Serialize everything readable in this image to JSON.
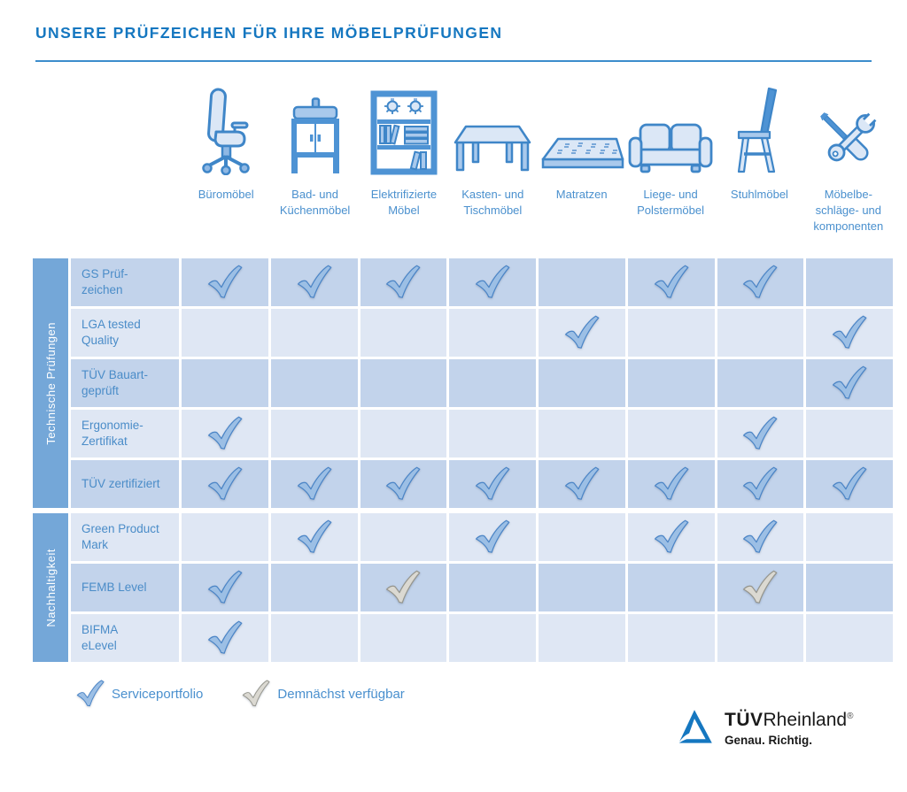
{
  "title": "UNSERE PRÜFZEICHEN FÜR IHRE MÖBELPRÜFUNGEN",
  "colors": {
    "accent_blue": "#1577c0",
    "underline_blue": "#3c8dcc",
    "group_band": "#74a7d8",
    "row_medium": "#c2d3eb",
    "row_light": "#dfe7f4",
    "label_text": "#4a8cc8",
    "column_label_text": "#4a90ce",
    "check_blue_fill": "#9cbfe5",
    "check_blue_stroke": "#4a84c6",
    "check_gray_fill": "#dbd9d2",
    "check_gray_stroke": "#95958d",
    "logo_blue": "#1577c0"
  },
  "columns": [
    {
      "label": "Büromöbel",
      "icon": "office-chair-icon"
    },
    {
      "label": "Bad- und\nKüchenmöbel",
      "icon": "bathroom-cabinet-icon"
    },
    {
      "label": "Elektrifizierte\nMöbel",
      "icon": "electrified-shelf-icon"
    },
    {
      "label": "Kasten- und\nTischmöbel",
      "icon": "table-icon"
    },
    {
      "label": "Matratzen",
      "icon": "mattress-icon"
    },
    {
      "label": "Liege- und\nPolstermöbel",
      "icon": "sofa-icon"
    },
    {
      "label": "Stuhlmöbel",
      "icon": "chair-icon"
    },
    {
      "label": "Möbelbe-\nschläge- und\nkomponenten",
      "icon": "tools-icon"
    }
  ],
  "groups": [
    {
      "label": "Technische Prüfungen",
      "rows": [
        {
          "label": "GS Prüf-\nzeichen",
          "cells": [
            "blue",
            "blue",
            "blue",
            "blue",
            "",
            "blue",
            "blue",
            ""
          ]
        },
        {
          "label": "LGA tested\nQuality",
          "cells": [
            "",
            "",
            "",
            "",
            "blue",
            "",
            "",
            "blue"
          ]
        },
        {
          "label": "TÜV Bauart-\ngeprüft",
          "cells": [
            "",
            "",
            "",
            "",
            "",
            "",
            "",
            "blue"
          ]
        },
        {
          "label": "Ergonomie-\nZertifikat",
          "cells": [
            "blue",
            "",
            "",
            "",
            "",
            "",
            "blue",
            ""
          ]
        },
        {
          "label": "TÜV zertifiziert",
          "cells": [
            "blue",
            "blue",
            "blue",
            "blue",
            "blue",
            "blue",
            "blue",
            "blue"
          ]
        }
      ]
    },
    {
      "label": "Nachhaltigkeit",
      "rows": [
        {
          "label": "Green Product\nMark",
          "cells": [
            "",
            "blue",
            "",
            "blue",
            "",
            "blue",
            "blue",
            ""
          ]
        },
        {
          "label": "FEMB Level",
          "cells": [
            "blue",
            "",
            "gray",
            "",
            "",
            "",
            "gray",
            ""
          ]
        },
        {
          "label": "BIFMA\neLevel",
          "cells": [
            "blue",
            "",
            "",
            "",
            "",
            "",
            "",
            ""
          ]
        }
      ]
    }
  ],
  "legend": [
    {
      "type": "blue",
      "label": "Serviceportfolio"
    },
    {
      "type": "gray",
      "label": "Demnächst verfügbar"
    }
  ],
  "logo": {
    "tuv": "TÜV",
    "rheinland": "Rheinland",
    "reg": "®",
    "tagline": "Genau. Richtig."
  }
}
